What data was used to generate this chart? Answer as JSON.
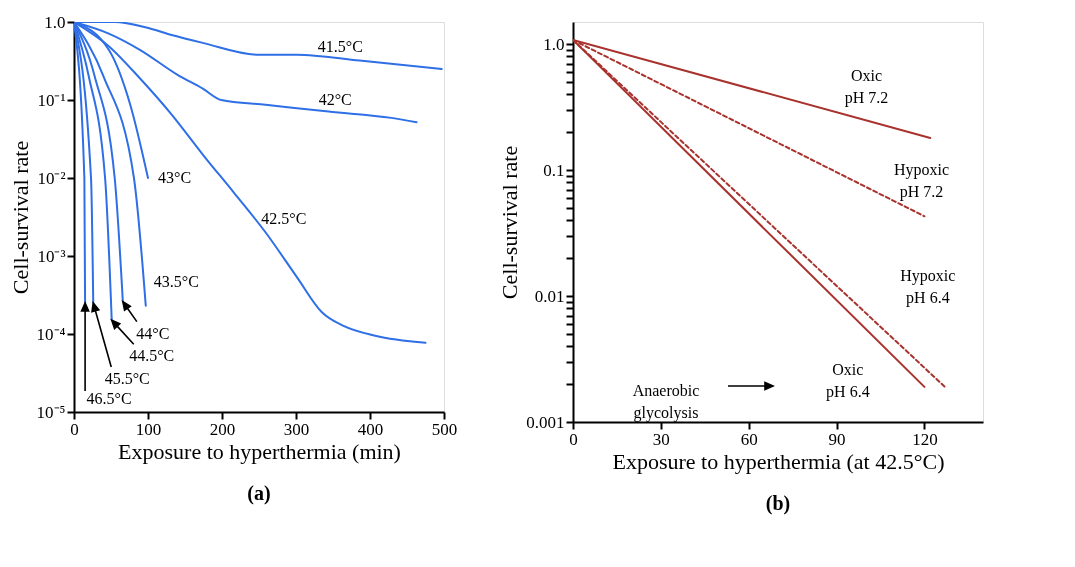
{
  "chart_data": [
    {
      "type": "line",
      "title": "(a)",
      "xlabel": "Exposure to hyperthermia (min)",
      "ylabel": "Cell-survival rate",
      "log": "y",
      "xlim": [
        0,
        500
      ],
      "xticks": [
        0,
        100,
        200,
        300,
        400,
        500
      ],
      "ylim": [
        1e-05,
        1
      ],
      "yticks": [
        {
          "value": 1e-05,
          "label": "10⁻⁵"
        },
        {
          "value": 0.0001,
          "label": "10⁻⁴"
        },
        {
          "value": 0.001,
          "label": "10⁻³"
        },
        {
          "value": 0.01,
          "label": "10⁻²"
        },
        {
          "value": 0.1,
          "label": "10⁻¹"
        },
        {
          "value": 1,
          "label": "1.0"
        }
      ],
      "line_style": "solid",
      "series": [
        {
          "color": "#2f6fe6",
          "x": [
            0,
            55,
            98,
            132,
            174,
            250,
            301,
            386,
            497
          ],
          "values": [
            1,
            1.0,
            0.85,
            0.68,
            0.54,
            0.38,
            0.38,
            0.32,
            0.25
          ]
        },
        {
          "color": "#2f6fe6",
          "x": [
            0,
            47,
            89,
            140,
            174,
            199,
            259,
            344,
            429,
            463
          ],
          "values": [
            1,
            0.71,
            0.44,
            0.21,
            0.14,
            0.1,
            0.087,
            0.071,
            0.059,
            0.052
          ]
        },
        {
          "color": "#2f6fe6",
          "x": [
            0,
            47,
            89,
            132,
            174,
            216,
            259,
            301,
            335,
            365,
            407,
            475
          ],
          "values": [
            1,
            0.49,
            0.19,
            0.065,
            0.02,
            0.0065,
            0.002,
            0.00054,
            0.00019,
            0.000126,
            9.5e-05,
            7.7e-05
          ]
        },
        {
          "color": "#2f6fe6",
          "x": [
            0,
            47,
            76,
            100
          ],
          "values": [
            1,
            0.44,
            0.087,
            0.01
          ]
        },
        {
          "color": "#2f6fe6",
          "x": [
            0,
            40,
            81,
            97
          ],
          "values": [
            1,
            0.2,
            0.01,
            0.00023
          ]
        },
        {
          "color": "#2f6fe6",
          "x": [
            0,
            28,
            55,
            66
          ],
          "values": [
            1,
            0.2,
            0.01,
            0.00026
          ]
        },
        {
          "color": "#2f6fe6",
          "x": [
            0,
            20,
            42,
            51
          ],
          "values": [
            1,
            0.2,
            0.01,
            0.00015
          ]
        },
        {
          "color": "#2f6fe6",
          "x": [
            0,
            23,
            26
          ],
          "values": [
            1,
            0.01,
            0.00025
          ]
        },
        {
          "color": "#2f6fe6",
          "x": [
            0,
            14,
            15
          ],
          "values": [
            1,
            0.01,
            0.00025
          ]
        }
      ],
      "annotations": [
        {
          "text": "41.5°C",
          "x": 360,
          "y": 0.34
        },
        {
          "text": "42°C",
          "x": 353,
          "y": 0.07
        },
        {
          "text": "42.5°C",
          "x": 245,
          "y": 0.003
        },
        {
          "text": "43°C",
          "x": 100,
          "y": 0.01
        },
        {
          "text": "43.5°C",
          "x": 97,
          "y": 0.00023
        },
        {
          "text": "44°C",
          "x": 66,
          "y": 0.00026
        },
        {
          "text": "44.5°C",
          "x": 51,
          "y": 0.00015
        },
        {
          "text": "45.5°C",
          "x": 26,
          "y": 0.00025
        },
        {
          "text": "46.5°C",
          "x": 15,
          "y": 0.00025
        }
      ]
    },
    {
      "type": "line",
      "title": "(b)",
      "xlabel": "Exposure to hyperthermia (at 42.5°C)",
      "ylabel": "Cell-survival rate",
      "log": "y",
      "xlim": [
        0,
        140
      ],
      "xticks": [
        0,
        30,
        60,
        90,
        120
      ],
      "ylim": [
        0.001,
        1.5
      ],
      "yticks": [
        {
          "value": 0.001,
          "label": "0.001"
        },
        {
          "value": 0.002,
          "label": null
        },
        {
          "value": 0.003,
          "label": null
        },
        {
          "value": 0.004,
          "label": null
        },
        {
          "value": 0.005,
          "label": null
        },
        {
          "value": 0.006,
          "label": null
        },
        {
          "value": 0.007,
          "label": null
        },
        {
          "value": 0.008,
          "label": null
        },
        {
          "value": 0.009,
          "label": null
        },
        {
          "value": 0.01,
          "label": "0.01"
        },
        {
          "value": 0.02,
          "label": null
        },
        {
          "value": 0.03,
          "label": null
        },
        {
          "value": 0.04,
          "label": null
        },
        {
          "value": 0.05,
          "label": null
        },
        {
          "value": 0.06,
          "label": null
        },
        {
          "value": 0.07,
          "label": null
        },
        {
          "value": 0.08,
          "label": null
        },
        {
          "value": 0.09,
          "label": null
        },
        {
          "value": 0.1,
          "label": "0.1"
        },
        {
          "value": 0.2,
          "label": null
        },
        {
          "value": 0.3,
          "label": null
        },
        {
          "value": 0.4,
          "label": null
        },
        {
          "value": 0.5,
          "label": null
        },
        {
          "value": 0.6,
          "label": null
        },
        {
          "value": 0.7,
          "label": null
        },
        {
          "value": 0.8,
          "label": null
        },
        {
          "value": 0.9,
          "label": null
        },
        {
          "value": 1,
          "label": "1.0"
        }
      ],
      "series": [
        {
          "color": "#a8322d",
          "line_style": "solid",
          "x": [
            0,
            122
          ],
          "values": [
            1.08,
            0.18
          ]
        },
        {
          "color": "#a8322d",
          "line_style": "dashed",
          "x": [
            0,
            120
          ],
          "values": [
            1.08,
            0.043
          ]
        },
        {
          "color": "#a8322d",
          "line_style": "dashed",
          "x": [
            0,
            127
          ],
          "values": [
            1.08,
            0.0019
          ]
        },
        {
          "color": "#a8322d",
          "line_style": "solid",
          "x": [
            0,
            120
          ],
          "values": [
            1.08,
            0.0019
          ]
        }
      ],
      "annotations": [
        {
          "text": "Oxic\npH 7.2",
          "x": 90,
          "y": 0.29
        },
        {
          "text": "Hypoxic\npH 7.2",
          "x": 120,
          "y": 0.043
        },
        {
          "text": "Hypoxic\npH 6.4",
          "x": 100,
          "y": 0.0072
        },
        {
          "text": "Oxic\npH 6.4",
          "x": 100,
          "y": 0.0054
        },
        "Anaerobic\nglycolysis"
      ]
    }
  ]
}
